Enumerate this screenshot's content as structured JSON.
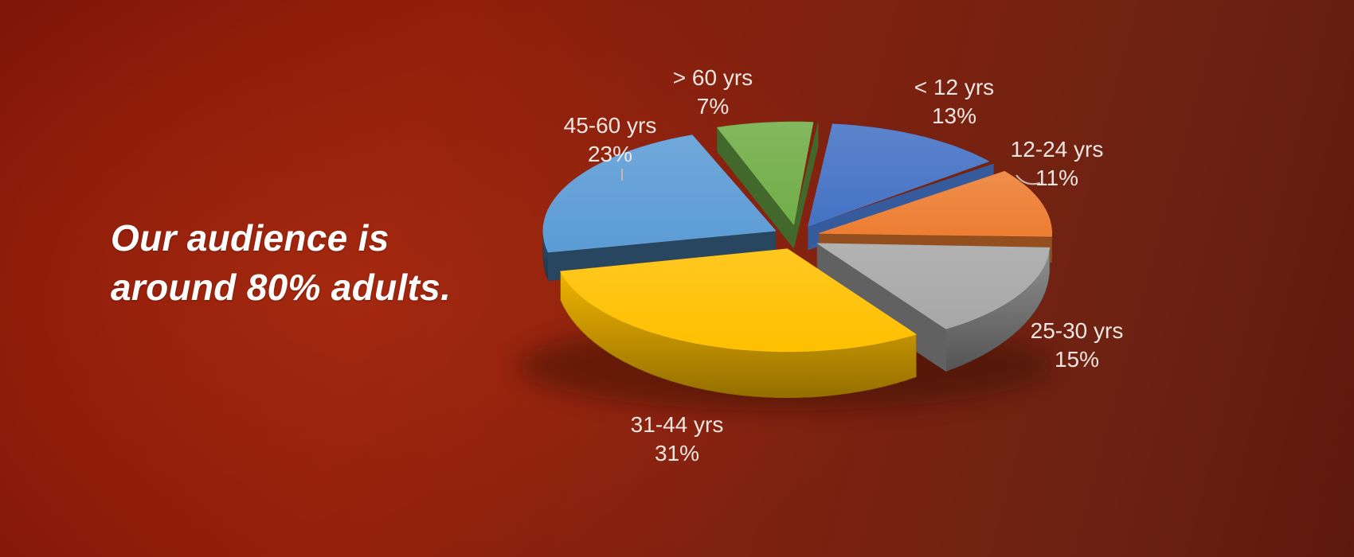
{
  "headline": {
    "lines": [
      "Our audience is",
      "around 80% adults."
    ]
  },
  "chart_data": {
    "type": "pie",
    "style": "3d-exploded",
    "title": "",
    "unit": "%",
    "direction": "clockwise",
    "start_angle_deg": -84,
    "legend": "none",
    "data_labels": "category name and percentage, outside slices",
    "slices": [
      {
        "key": "lt-12",
        "label": "< 12 yrs",
        "value": 13,
        "percent_label": "13%",
        "color": "#4472C4"
      },
      {
        "key": "12-24",
        "label": "12-24 yrs",
        "value": 11,
        "percent_label": "11%",
        "color": "#ED7D31"
      },
      {
        "key": "25-30",
        "label": "25-30 yrs",
        "value": 15,
        "percent_label": "15%",
        "color": "#A7A7A7"
      },
      {
        "key": "31-44",
        "label": "31-44 yrs",
        "value": 31,
        "percent_label": "31%",
        "color": "#FFC000"
      },
      {
        "key": "45-60",
        "label": "45-60 yrs",
        "value": 23,
        "percent_label": "23%",
        "color": "#5B9BD5"
      },
      {
        "key": "gt-60",
        "label": "> 60 yrs",
        "value": 7,
        "percent_label": "7%",
        "color": "#70AD47"
      }
    ],
    "background_color": "#7E1407",
    "label_text_color": "#EFE6E1",
    "headline_text_color": "#FFFFFF"
  }
}
